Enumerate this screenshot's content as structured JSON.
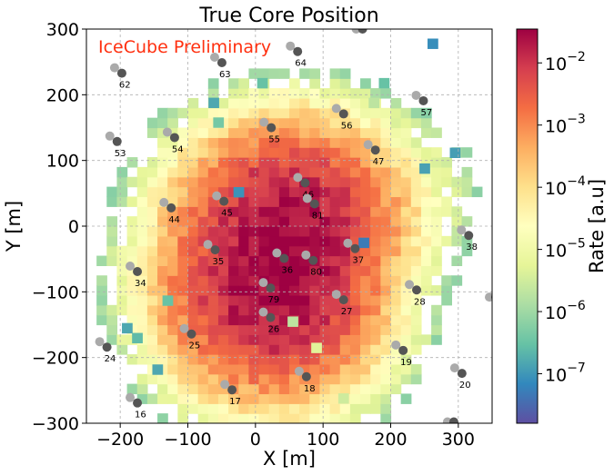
{
  "chart_data": {
    "type": "heatmap",
    "title": "True Core Position",
    "xlabel": "X [m]",
    "ylabel": "Y [m]",
    "xlim": [
      -250,
      350
    ],
    "ylim": [
      -300,
      300
    ],
    "xticks": [
      -200,
      -100,
      0,
      100,
      200,
      300
    ],
    "yticks": [
      -300,
      -200,
      -100,
      0,
      100,
      200,
      300
    ],
    "xtick_labels": [
      "−200",
      "−100",
      "0",
      "100",
      "200",
      "300"
    ],
    "ytick_labels": [
      "−300",
      "−200",
      "−100",
      "0",
      "100",
      "200",
      "300"
    ],
    "grid": true,
    "annotation": "IceCube Preliminary",
    "annotation_color": "#ff3010",
    "bin_size_m": 15,
    "colorbar": {
      "label": "Rate [a.u]",
      "scale": "log",
      "range": [
        1.6e-08,
        0.035
      ],
      "tick_labels": [
        {
          "value": 1e-07,
          "base": "10",
          "exp": "−7"
        },
        {
          "value": 1e-06,
          "base": "10",
          "exp": "−6"
        },
        {
          "value": 1e-05,
          "base": "10",
          "exp": "−5"
        },
        {
          "value": 0.0001,
          "base": "10",
          "exp": "−4"
        },
        {
          "value": 0.001,
          "base": "10",
          "exp": "−3"
        },
        {
          "value": 0.01,
          "base": "10",
          "exp": "−2"
        }
      ],
      "colormap": "Spectral_r"
    },
    "hotspots": [
      {
        "x": 50,
        "y": 10,
        "sx": 55,
        "sy": 50,
        "peak": 0.025
      },
      {
        "x": 25,
        "y": -95,
        "sx": 55,
        "sy": 55,
        "peak": 0.03
      },
      {
        "x": 55,
        "y": -40,
        "sx": 40,
        "sy": 30,
        "peak": 0.012
      },
      {
        "x": 150,
        "y": 55,
        "sx": 60,
        "sy": 45,
        "peak": 4e-05
      }
    ],
    "isolated_bins": [
      {
        "x": 262,
        "y": 278,
        "value": 8e-08
      },
      {
        "x": 10,
        "y": 218,
        "value": 3e-07
      },
      {
        "x": 190,
        "y": 218,
        "value": 3e-07
      },
      {
        "x": -62,
        "y": 188,
        "value": 1.5e-07
      },
      {
        "x": -55,
        "y": 158,
        "value": 4e-07
      },
      {
        "x": 175,
        "y": 188,
        "value": 2e-06
      },
      {
        "x": 295,
        "y": 112,
        "value": 1.2e-07
      },
      {
        "x": 250,
        "y": 88,
        "value": 1.3e-07
      },
      {
        "x": -25,
        "y": 52,
        "value": 9e-08
      },
      {
        "x": 160,
        "y": -25,
        "value": 5e-08
      },
      {
        "x": -190,
        "y": -155,
        "value": 1.5e-07
      },
      {
        "x": -175,
        "y": -170,
        "value": 2.5e-07
      },
      {
        "x": -145,
        "y": -218,
        "value": 1.5e-07
      },
      {
        "x": -130,
        "y": -113,
        "value": 3e-07
      },
      {
        "x": 130,
        "y": -262,
        "value": 3e-06
      },
      {
        "x": 55,
        "y": -145,
        "value": 2e-06
      },
      {
        "x": 90,
        "y": -185,
        "value": 5e-06
      }
    ],
    "doms": [
      {
        "id": "62",
        "x": -203,
        "y": 237
      },
      {
        "id": "63",
        "x": -55,
        "y": 253
      },
      {
        "id": "64",
        "x": 57,
        "y": 270
      },
      {
        "id": "57",
        "x": 243,
        "y": 195
      },
      {
        "id": "56",
        "x": 125,
        "y": 175
      },
      {
        "id": "55",
        "x": 18,
        "y": 154
      },
      {
        "id": "54",
        "x": -125,
        "y": 139
      },
      {
        "id": "53",
        "x": -210,
        "y": 133
      },
      {
        "id": "47",
        "x": 172,
        "y": 120
      },
      {
        "id": "46",
        "x": 68,
        "y": 70
      },
      {
        "id": "81",
        "x": 82,
        "y": 38
      },
      {
        "id": "45",
        "x": -52,
        "y": 42
      },
      {
        "id": "44",
        "x": -130,
        "y": 32
      },
      {
        "id": "38",
        "x": 310,
        "y": -10
      },
      {
        "id": "37",
        "x": 142,
        "y": -30
      },
      {
        "id": "36",
        "x": 37,
        "y": -45
      },
      {
        "id": "80",
        "x": 80,
        "y": -48
      },
      {
        "id": "35",
        "x": -65,
        "y": -32
      },
      {
        "id": "34",
        "x": -180,
        "y": -65
      },
      {
        "id": "79",
        "x": 17,
        "y": -90
      },
      {
        "id": "28",
        "x": 233,
        "y": -93
      },
      {
        "id": "27",
        "x": 125,
        "y": -108
      },
      {
        "id": "26",
        "x": 17,
        "y": -135
      },
      {
        "id": "25",
        "x": -100,
        "y": -160
      },
      {
        "id": "24",
        "x": -225,
        "y": -180
      },
      {
        "id": "19",
        "x": 213,
        "y": -185
      },
      {
        "id": "20",
        "x": 300,
        "y": -220
      },
      {
        "id": "18",
        "x": 70,
        "y": -225
      },
      {
        "id": "17",
        "x": -40,
        "y": -245
      },
      {
        "id": "16",
        "x": -180,
        "y": -265
      }
    ],
    "edge_doms": [
      {
        "x": 153,
        "y": 300
      },
      {
        "x": 288,
        "y": -298
      },
      {
        "x": 350,
        "y": -108
      }
    ]
  }
}
